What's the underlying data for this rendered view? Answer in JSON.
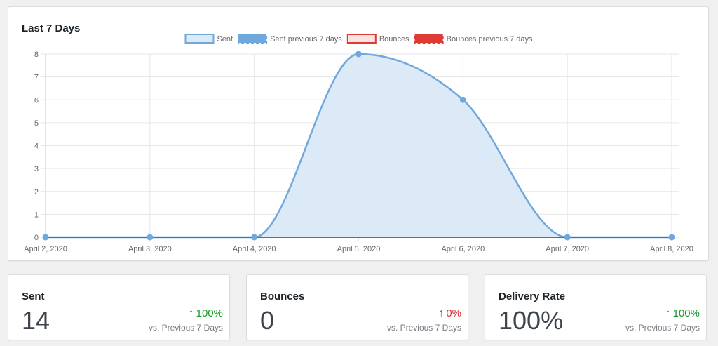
{
  "chart_card": {
    "title": "Last 7 Days"
  },
  "chart_data": {
    "type": "line",
    "categories": [
      "April 2, 2020",
      "April 3, 2020",
      "April 4, 2020",
      "April 5, 2020",
      "April 6, 2020",
      "April 7, 2020",
      "April 8, 2020"
    ],
    "series": [
      {
        "name": "Sent",
        "values": [
          0,
          0,
          0,
          8,
          6,
          0,
          0
        ],
        "color": "#6fa8dc",
        "fill": "#dce9f7"
      },
      {
        "name": "Sent previous 7 days",
        "values": [
          0,
          0,
          0,
          0,
          0,
          0,
          0
        ],
        "color": "#6fa8dc"
      },
      {
        "name": "Bounces",
        "values": [
          0,
          0,
          0,
          0,
          0,
          0,
          0
        ],
        "color": "#dd3b33",
        "fill": "#fbe3e2"
      },
      {
        "name": "Bounces previous 7 days",
        "values": [
          0,
          0,
          0,
          0,
          0,
          0,
          0
        ],
        "color": "#dd3b33"
      }
    ],
    "ylim": [
      0,
      8
    ],
    "yticks": [
      "0",
      "1",
      "2",
      "3",
      "4",
      "5",
      "6",
      "7",
      "8"
    ],
    "grid": true,
    "legend_position": "top"
  },
  "stats": [
    {
      "label": "Sent",
      "value": "14",
      "change": "100%",
      "direction": "up",
      "arrow": "↑",
      "compare": "vs. Previous 7 Days"
    },
    {
      "label": "Bounces",
      "value": "0",
      "change": "0%",
      "direction": "down",
      "arrow": "↑",
      "compare": "vs. Previous 7 Days"
    },
    {
      "label": "Delivery Rate",
      "value": "100%",
      "change": "100%",
      "direction": "up",
      "arrow": "↑",
      "compare": "vs. Previous 7 Days"
    }
  ]
}
